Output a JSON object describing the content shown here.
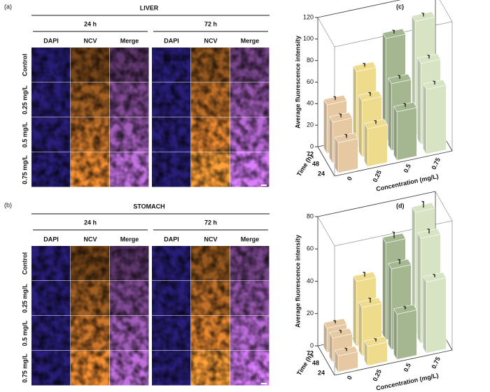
{
  "figure": {
    "panels": [
      {
        "label": "(a)",
        "title": "LIVER",
        "groups": [
          "24 h",
          "72 h"
        ],
        "columns": [
          "DAPI",
          "NCV",
          "Merge",
          "DAPI",
          "NCV",
          "Merge"
        ],
        "rows": [
          "Control",
          "0.25 mg/L",
          "0.5 mg/L",
          "0.75 mg/L"
        ]
      },
      {
        "label": "(b)",
        "title": "STOMACH",
        "groups": [
          "24 h",
          "72 h"
        ],
        "columns": [
          "DAPI",
          "NCV",
          "Merge",
          "DAPI",
          "NCV",
          "Merge"
        ],
        "rows": [
          "Control",
          "0.25 mg/L",
          "0.5 mg/L",
          "0.75 mg/L"
        ]
      }
    ]
  },
  "chart_data": [
    {
      "type": "bar3d",
      "panel_label": "(c)",
      "ylabel": "Average fluorescence intensity",
      "xlabel": "Concentration (mg/L)",
      "zlabel": "Time (h)",
      "categories": [
        "0",
        "0.25",
        "0.5",
        "0.75"
      ],
      "category_colors": [
        "#e6c9a2",
        "#efdb8c",
        "#a5b791",
        "#d6e4c3"
      ],
      "series": [
        {
          "name": "24",
          "values": [
            28,
            35,
            45,
            60
          ],
          "errors": [
            2,
            2,
            2,
            2
          ]
        },
        {
          "name": "48",
          "values": [
            38,
            52,
            62,
            75
          ],
          "errors": [
            2,
            2,
            2,
            2
          ]
        },
        {
          "name": "72",
          "values": [
            45,
            70,
            95,
            105
          ],
          "errors": [
            2,
            2,
            2,
            2
          ]
        }
      ],
      "ylim": [
        0,
        120
      ],
      "yticks": [
        0,
        20,
        40,
        60,
        80,
        100,
        120
      ]
    },
    {
      "type": "bar3d",
      "panel_label": "(d)",
      "ylabel": "Average fluorescence intensity",
      "xlabel": "Concentration (mg/L)",
      "zlabel": "Time (h)",
      "categories": [
        "0",
        "0.25",
        "0.5",
        "0.75"
      ],
      "category_colors": [
        "#e6c9a2",
        "#efdb8c",
        "#a5b791",
        "#d6e4c3"
      ],
      "series": [
        {
          "name": "24",
          "values": [
            10,
            12,
            28,
            44
          ],
          "errors": [
            1,
            1,
            1,
            1
          ]
        },
        {
          "name": "48",
          "values": [
            15,
            30,
            50,
            65
          ],
          "errors": [
            1,
            2,
            2,
            2
          ]
        },
        {
          "name": "72",
          "values": [
            15,
            40,
            60,
            75
          ],
          "errors": [
            1,
            2,
            3,
            3
          ]
        }
      ],
      "ylim": [
        0,
        80
      ],
      "yticks": [
        0,
        20,
        40,
        60,
        80
      ]
    }
  ]
}
